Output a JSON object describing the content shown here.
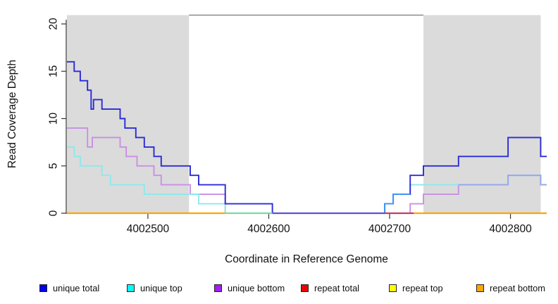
{
  "figure": {
    "y_axis": {
      "label": "Read Coverage Depth",
      "ticks": [
        0,
        5,
        10,
        15,
        20
      ]
    },
    "x_axis": {
      "label": "Coordinate in Reference Genome",
      "ticks": [
        4002500,
        4002600,
        4002700,
        4002800
      ]
    },
    "legend": [
      {
        "label": "unique total",
        "color": "#0000EE"
      },
      {
        "label": "unique top",
        "color": "#00FFFF"
      },
      {
        "label": "unique bottom",
        "color": "#A020F0"
      },
      {
        "label": "repeat total",
        "color": "#EE0000"
      },
      {
        "label": "repeat top",
        "color": "#FFFF00"
      },
      {
        "label": "repeat bottom",
        "color": "#FFA500"
      }
    ]
  },
  "chart_data": {
    "type": "line",
    "step_interpolation": "hv",
    "title": "",
    "xlabel": "Coordinate in Reference Genome",
    "ylabel": "Read Coverage Depth",
    "xlim": [
      4002433,
      4002830
    ],
    "ylim": [
      0,
      21
    ],
    "x_ticks": [
      4002500,
      4002600,
      4002700,
      4002800
    ],
    "y_ticks": [
      0,
      5,
      10,
      15,
      20
    ],
    "grid": false,
    "legend_position": "bottom",
    "shaded_regions": [
      {
        "name": "repeat-region-left",
        "from": 4002433,
        "to": 4002534,
        "fill": "#DBDBDB"
      },
      {
        "name": "repeat-region-right",
        "from": 4002728,
        "to": 4002825,
        "fill": "#DBDBDB"
      }
    ],
    "gap_border": {
      "from": 4002534,
      "to": 4002728,
      "color": "#8A8A8A"
    },
    "series": [
      {
        "name": "repeat total",
        "legend_color": "#EE0000",
        "line_color": "#DD0000",
        "steps": [
          [
            4002433,
            0
          ]
        ],
        "end": 4002830
      },
      {
        "name": "repeat top",
        "legend_color": "#FFFF00",
        "line_color": "#FFEE00",
        "steps": [
          [
            4002433,
            0
          ]
        ],
        "end": 4002830
      },
      {
        "name": "repeat bottom",
        "legend_color": "#FFA500",
        "line_color": "#FFA500",
        "steps": [
          [
            4002433,
            0
          ]
        ],
        "end": 4002830
      },
      {
        "name": "unique bottom",
        "legend_color": "#A020F0",
        "line_color": "#C98FE6",
        "steps": [
          [
            4002433,
            9
          ],
          [
            4002450,
            7
          ],
          [
            4002454,
            8
          ],
          [
            4002477,
            7
          ],
          [
            4002482,
            6
          ],
          [
            4002491,
            5
          ],
          [
            4002505,
            4
          ],
          [
            4002511,
            3
          ],
          [
            4002535,
            2
          ],
          [
            4002564,
            0
          ],
          [
            4002717,
            1
          ],
          [
            4002728,
            2
          ],
          [
            4002757,
            3
          ],
          [
            4002798,
            4
          ],
          [
            4002825,
            3
          ]
        ],
        "end": 4002830
      },
      {
        "name": "unique top",
        "legend_color": "#00FFFF",
        "line_color": "#8DE9EC",
        "steps": [
          [
            4002433,
            7
          ],
          [
            4002439,
            6
          ],
          [
            4002444,
            5
          ],
          [
            4002462,
            4
          ],
          [
            4002469,
            3
          ],
          [
            4002497,
            2
          ],
          [
            4002542,
            1
          ],
          [
            4002564,
            0
          ],
          [
            4002696,
            1
          ],
          [
            4002703,
            2
          ],
          [
            4002717,
            3
          ],
          [
            4002798,
            4
          ],
          [
            4002825,
            3
          ]
        ],
        "end": 4002830
      },
      {
        "name": "unique total",
        "legend_color": "#0000EE",
        "line_color": "#2B2BD6",
        "steps": [
          [
            4002433,
            16
          ],
          [
            4002439,
            15
          ],
          [
            4002444,
            14
          ],
          [
            4002450,
            13
          ],
          [
            4002453,
            11
          ],
          [
            4002455,
            12
          ],
          [
            4002462,
            11
          ],
          [
            4002477,
            10
          ],
          [
            4002481,
            9
          ],
          [
            4002490,
            8
          ],
          [
            4002497,
            7
          ],
          [
            4002505,
            6
          ],
          [
            4002511,
            5
          ],
          [
            4002535,
            4
          ],
          [
            4002542,
            3
          ],
          [
            4002564,
            1
          ],
          [
            4002603,
            0
          ],
          [
            4002696,
            1
          ],
          [
            4002703,
            2
          ],
          [
            4002717,
            4
          ],
          [
            4002728,
            5
          ],
          [
            4002757,
            6
          ],
          [
            4002798,
            8
          ],
          [
            4002825,
            6
          ]
        ],
        "end": 4002830
      }
    ],
    "overlap_segments": [
      {
        "name": "unique-total-top-overlap",
        "color": "#3E9AF5",
        "steps": [
          [
            4002696,
            0
          ],
          [
            4002696,
            1
          ],
          [
            4002703,
            2
          ]
        ],
        "end": 4002717
      },
      {
        "name": "unique-top-bottom-overlap",
        "color": "#98A6EC",
        "steps": [
          [
            4002757,
            3
          ],
          [
            4002798,
            4
          ],
          [
            4002825,
            3
          ]
        ],
        "end": 4002830
      }
    ],
    "zero_line_segments": [
      {
        "from": 4002433,
        "to": 4002564,
        "color": "#FFA500"
      },
      {
        "from": 4002564,
        "to": 4002603,
        "color": "#7CD8A8"
      },
      {
        "from": 4002603,
        "to": 4002696,
        "color": "#5B50DC"
      },
      {
        "from": 4002696,
        "to": 4002720,
        "color": "#C23E62"
      },
      {
        "from": 4002720,
        "to": 4002830,
        "color": "#FFA500"
      }
    ]
  }
}
